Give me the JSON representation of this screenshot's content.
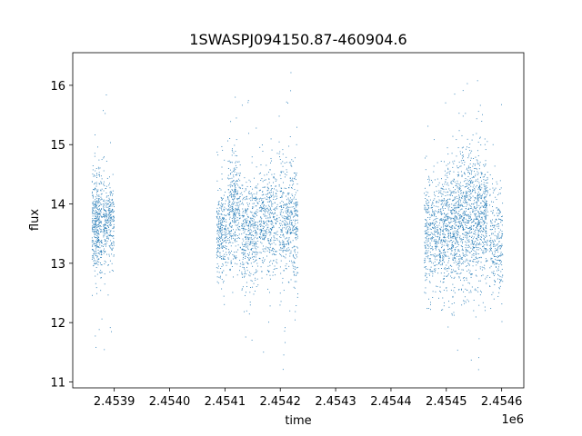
{
  "chart_data": {
    "type": "scatter",
    "title": "1SWASPJ094150.87-460904.6",
    "xlabel": "time",
    "ylabel": "flux",
    "x_offset_label": "1e6",
    "xlim": [
      2453825,
      2454640
    ],
    "ylim": [
      10.9,
      16.55
    ],
    "x_ticks": [
      2453900,
      2454000,
      2454100,
      2454200,
      2454300,
      2454400,
      2454500,
      2454600
    ],
    "x_tick_labels": [
      "2.4539",
      "2.4540",
      "2.4541",
      "2.4542",
      "2.4543",
      "2.4544",
      "2.4545",
      "2.4546"
    ],
    "y_ticks": [
      11,
      12,
      13,
      14,
      15,
      16
    ],
    "y_tick_labels": [
      "11",
      "12",
      "13",
      "14",
      "15",
      "16"
    ],
    "grid": false,
    "marker": "point",
    "series": [
      {
        "color": "#1f77b4",
        "segments": [
          {
            "x_start": 2453860,
            "x_end": 2453878,
            "center": 13.7,
            "spread": 0.45,
            "min": 11.5,
            "max": 16.2,
            "count": 420
          },
          {
            "x_start": 2453880,
            "x_end": 2453900,
            "center": 13.7,
            "spread": 0.35,
            "min": 11.5,
            "max": 16.2,
            "count": 300
          },
          {
            "x_start": 2454085,
            "x_end": 2454103,
            "center": 13.5,
            "spread": 0.4,
            "min": 12.0,
            "max": 15.3,
            "count": 260
          },
          {
            "x_start": 2454105,
            "x_end": 2454128,
            "center": 13.9,
            "spread": 0.5,
            "min": 11.8,
            "max": 16.15,
            "count": 360
          },
          {
            "x_start": 2454130,
            "x_end": 2454160,
            "center": 13.5,
            "spread": 0.45,
            "min": 11.4,
            "max": 16.2,
            "count": 420
          },
          {
            "x_start": 2454162,
            "x_end": 2454195,
            "center": 13.7,
            "spread": 0.45,
            "min": 11.2,
            "max": 15.5,
            "count": 420
          },
          {
            "x_start": 2454198,
            "x_end": 2454232,
            "center": 13.7,
            "spread": 0.5,
            "min": 11.15,
            "max": 16.3,
            "count": 480
          },
          {
            "x_start": 2454460,
            "x_end": 2454490,
            "center": 13.5,
            "spread": 0.45,
            "min": 12.0,
            "max": 15.5,
            "count": 400
          },
          {
            "x_start": 2454490,
            "x_end": 2454520,
            "center": 13.6,
            "spread": 0.55,
            "min": 11.7,
            "max": 16.0,
            "count": 520
          },
          {
            "x_start": 2454520,
            "x_end": 2454550,
            "center": 13.7,
            "spread": 0.6,
            "min": 11.3,
            "max": 16.25,
            "count": 560
          },
          {
            "x_start": 2454550,
            "x_end": 2454575,
            "center": 13.8,
            "spread": 0.5,
            "min": 11.2,
            "max": 16.1,
            "count": 460
          },
          {
            "x_start": 2454578,
            "x_end": 2454602,
            "center": 13.4,
            "spread": 0.45,
            "min": 12.0,
            "max": 16.0,
            "count": 260
          }
        ]
      }
    ]
  }
}
